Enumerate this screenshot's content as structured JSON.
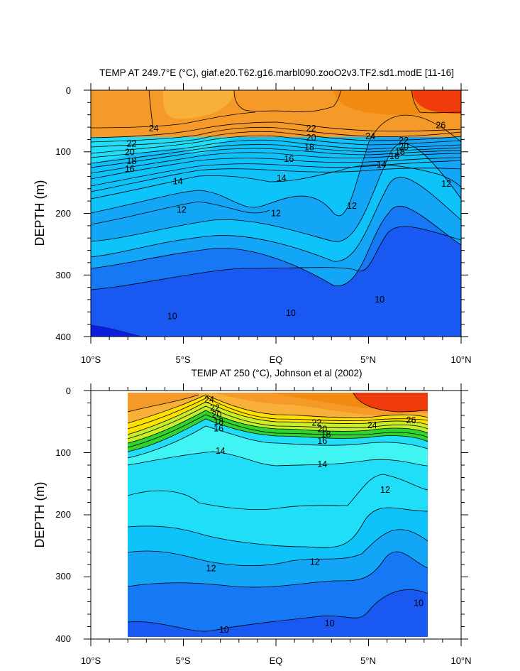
{
  "chart_data": [
    {
      "type": "contour",
      "title": "TEMP AT 249.7°E (°C), giaf.e20.T62.g16.marbl090.zooO2v3.TF2.sd1.modE [11-16]",
      "ylabel": "DEPTH (m)",
      "x_ticks": [
        "10°S",
        "5°S",
        "EQ",
        "5°N",
        "10°N"
      ],
      "y_ticks": [
        "0",
        "100",
        "200",
        "300",
        "400"
      ],
      "xlim": [
        -10,
        10
      ],
      "ylim": [
        400,
        0
      ],
      "contour_labels": [
        {
          "text": "24",
          "lat": -6.6,
          "depth": 62
        },
        {
          "text": "22",
          "lat": -7.8,
          "depth": 87
        },
        {
          "text": "20",
          "lat": -7.9,
          "depth": 101
        },
        {
          "text": "18",
          "lat": -7.8,
          "depth": 115
        },
        {
          "text": "16",
          "lat": -7.9,
          "depth": 128
        },
        {
          "text": "14",
          "lat": -5.3,
          "depth": 148
        },
        {
          "text": "12",
          "lat": -5.1,
          "depth": 194
        },
        {
          "text": "22",
          "lat": 1.9,
          "depth": 62
        },
        {
          "text": "20",
          "lat": 1.9,
          "depth": 77
        },
        {
          "text": "18",
          "lat": 1.8,
          "depth": 93
        },
        {
          "text": "16",
          "lat": 0.7,
          "depth": 112
        },
        {
          "text": "14",
          "lat": 0.3,
          "depth": 143
        },
        {
          "text": "12",
          "lat": 0.0,
          "depth": 200
        },
        {
          "text": "12",
          "lat": 4.1,
          "depth": 188
        },
        {
          "text": "24",
          "lat": 5.1,
          "depth": 75
        },
        {
          "text": "26",
          "lat": 8.9,
          "depth": 57
        },
        {
          "text": "22",
          "lat": 6.9,
          "depth": 82
        },
        {
          "text": "20",
          "lat": 6.9,
          "depth": 92
        },
        {
          "text": "18",
          "lat": 6.7,
          "depth": 100
        },
        {
          "text": "16",
          "lat": 6.4,
          "depth": 107
        },
        {
          "text": "14",
          "lat": 5.7,
          "depth": 121
        },
        {
          "text": "12",
          "lat": 9.2,
          "depth": 152
        },
        {
          "text": "10",
          "lat": -5.6,
          "depth": 367
        },
        {
          "text": "10",
          "lat": 0.8,
          "depth": 362
        },
        {
          "text": "10",
          "lat": 5.6,
          "depth": 340
        }
      ]
    },
    {
      "type": "contour",
      "title": "TEMP AT 250 (°C), Johnson et al (2002)",
      "ylabel": "DEPTH (m)",
      "x_ticks": [
        "10°S",
        "5°S",
        "EQ",
        "5°N",
        "10°N"
      ],
      "y_ticks": [
        "0",
        "100",
        "200",
        "300",
        "400"
      ],
      "xlim": [
        -10,
        10
      ],
      "ylim": [
        400,
        0
      ],
      "data_extent_lat": [
        -8,
        8.2
      ],
      "contour_labels": [
        {
          "text": "24",
          "lat": -3.6,
          "depth": 15
        },
        {
          "text": "22",
          "lat": -3.3,
          "depth": 28
        },
        {
          "text": "20",
          "lat": -3.2,
          "depth": 39
        },
        {
          "text": "18",
          "lat": -3.1,
          "depth": 50
        },
        {
          "text": "16",
          "lat": -3.1,
          "depth": 61
        },
        {
          "text": "14",
          "lat": -3.0,
          "depth": 97
        },
        {
          "text": "12",
          "lat": -3.5,
          "depth": 286
        },
        {
          "text": "10",
          "lat": -2.8,
          "depth": 385
        },
        {
          "text": "22",
          "lat": 2.2,
          "depth": 52
        },
        {
          "text": "20",
          "lat": 2.5,
          "depth": 62
        },
        {
          "text": "18",
          "lat": 2.7,
          "depth": 71
        },
        {
          "text": "16",
          "lat": 2.5,
          "depth": 81
        },
        {
          "text": "14",
          "lat": 2.5,
          "depth": 119
        },
        {
          "text": "12",
          "lat": 2.1,
          "depth": 276
        },
        {
          "text": "10",
          "lat": 2.9,
          "depth": 375
        },
        {
          "text": "24",
          "lat": 5.2,
          "depth": 56
        },
        {
          "text": "26",
          "lat": 7.3,
          "depth": 48
        },
        {
          "text": "12",
          "lat": 5.9,
          "depth": 160
        },
        {
          "text": "10",
          "lat": 7.7,
          "depth": 342
        }
      ]
    }
  ],
  "colors": {
    "red": "#f03c0c",
    "orange_deep": "#f28a12",
    "orange": "#f59a28",
    "orange_light": "#f8b038",
    "yellow": "#ffe100",
    "yellow_green": "#c8ee28",
    "green": "#2ed52e",
    "cyan_light": "#40f4f4",
    "cyan": "#20def8",
    "sky": "#0ec2fa",
    "blue_light": "#14a6f6",
    "blue": "#1678f4",
    "blue_deep": "#1a58f2",
    "navy": "#0a1ee0"
  }
}
